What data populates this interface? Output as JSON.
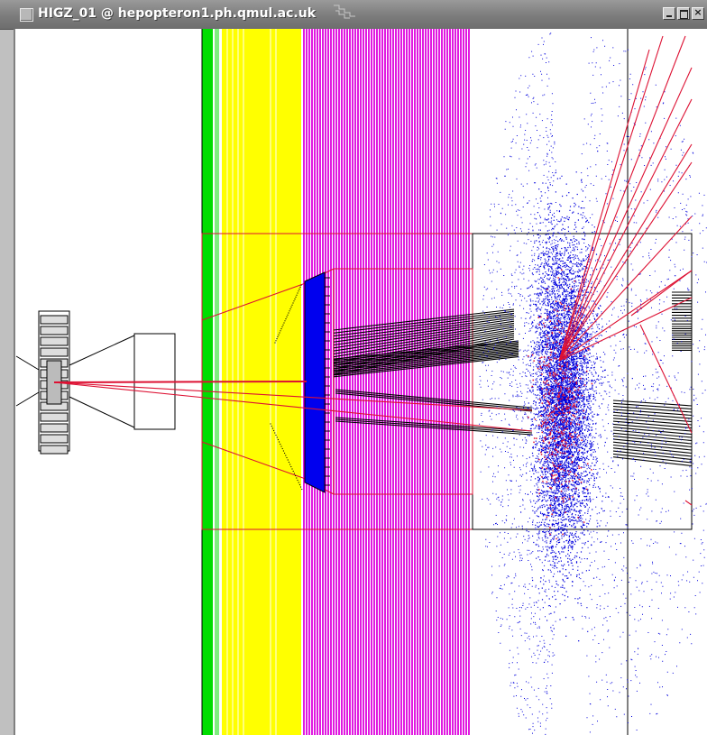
{
  "window": {
    "title": "HIGZ_01 @ hepopteron1.ph.qmul.ac.uk",
    "minimize_icon": "minimize-icon",
    "maximize_icon": "maximize-icon",
    "close_icon": "close-icon",
    "close_glyph": "×"
  },
  "display": {
    "colors": {
      "background": "#ffffff",
      "green_band": "#00dd00",
      "yellow_band": "#ffff00",
      "magenta_band": "#dd00dd",
      "blue_block": "#0000ee",
      "hits": "#0000dd",
      "tracks": "#dd1133",
      "outline": "#000000"
    }
  }
}
